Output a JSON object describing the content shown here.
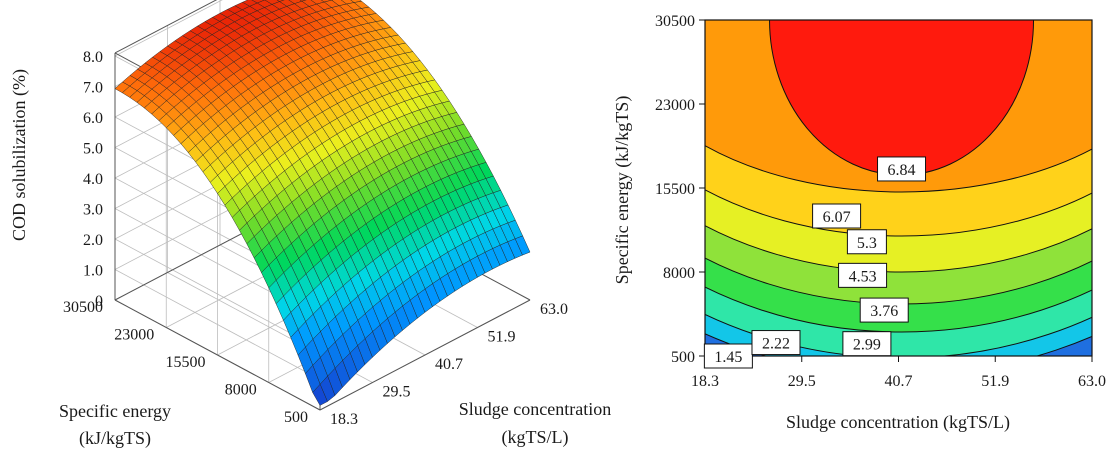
{
  "chart_data": [
    {
      "type": "surface",
      "zlabel": "COD solubilization (%)",
      "xlabel": "Sludge concentration (kgTS/L)",
      "ylabel_line1": "Specific energy",
      "ylabel_line2": "(kJ/kgTS)",
      "x_ticks": [
        "18.3",
        "29.5",
        "40.7",
        "51.9",
        "63.0"
      ],
      "y_ticks": [
        "500",
        "8000",
        "15500",
        "23000",
        "30500"
      ],
      "z_ticks": [
        "0",
        "1.0",
        "2.0",
        "3.0",
        "4.0",
        "5.0",
        "6.0",
        "7.0",
        "8.0"
      ],
      "xlim": [
        18.3,
        63.0
      ],
      "ylim": [
        500,
        30500
      ],
      "zlim": [
        0,
        8
      ],
      "corner_values": [
        {
          "x": 18.3,
          "y": 500,
          "z": 0.4
        },
        {
          "x": 63.0,
          "y": 500,
          "z": 2.2
        },
        {
          "x": 18.3,
          "y": 30500,
          "z": 6.5
        },
        {
          "x": 63.0,
          "y": 30500,
          "z": 6.2
        }
      ],
      "peak": {
        "x": 41.0,
        "y": 30500,
        "z": 7.6
      }
    },
    {
      "type": "contour",
      "xlabel": "Sludge concentration (kgTS/L)",
      "ylabel": "Specific energy (kJ/kgTS)",
      "x_ticks": [
        "18.3",
        "29.5",
        "40.7",
        "51.9",
        "63.0"
      ],
      "y_ticks": [
        "500",
        "8000",
        "15500",
        "23000",
        "30500"
      ],
      "xlim": [
        18.3,
        63.0
      ],
      "ylim": [
        500,
        30500
      ],
      "levels": [
        {
          "label": "1.45",
          "x": 21.0,
          "y": 500,
          "color": "#1f6fe0"
        },
        {
          "label": "2.22",
          "x": 26.5,
          "y": 1700,
          "color": "#13c6e8"
        },
        {
          "label": "2.99",
          "x": 37.0,
          "y": 1600,
          "color": "#2fe6a8"
        },
        {
          "label": "3.76",
          "x": 39.0,
          "y": 4600,
          "color": "#35e04a"
        },
        {
          "label": "4.53",
          "x": 36.5,
          "y": 7700,
          "color": "#8fe23a"
        },
        {
          "label": "5.3",
          "x": 37.0,
          "y": 10700,
          "color": "#e6f024"
        },
        {
          "label": "6.07",
          "x": 33.5,
          "y": 13000,
          "color": "#ffd21a"
        },
        {
          "label": "6.84",
          "x": 41.0,
          "y": 17200,
          "color": "#ff9a0a"
        }
      ],
      "top_region_color": "#ff1a0d"
    }
  ]
}
